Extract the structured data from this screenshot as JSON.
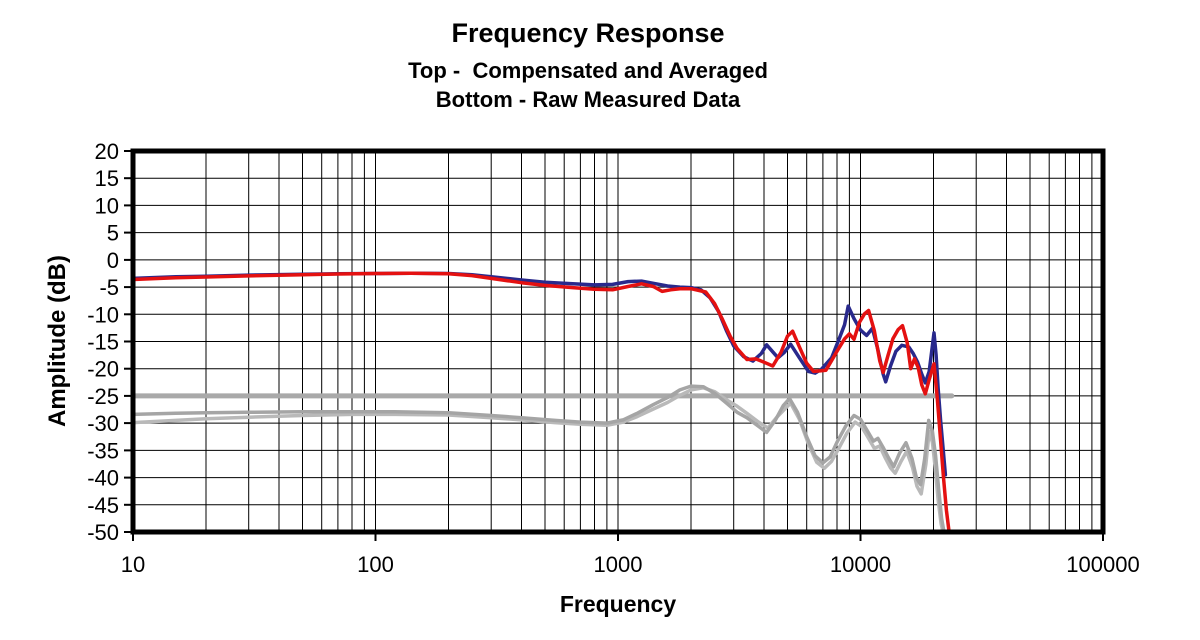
{
  "chart_data": {
    "type": "line",
    "title": "Frequency Response",
    "subtitle_top": "Top -  Compensated and Averaged",
    "subtitle_bottom": "Bottom - Raw Measured Data",
    "xlabel": "Frequency",
    "ylabel": "Amplitude (dB)",
    "x_scale": "log",
    "xlim": [
      10,
      100000
    ],
    "ylim": [
      -50,
      20
    ],
    "x_ticks": [
      10,
      100,
      1000,
      10000,
      100000
    ],
    "y_ticks": [
      20,
      15,
      10,
      5,
      0,
      -5,
      -10,
      -15,
      -20,
      -25,
      -30,
      -35,
      -40,
      -45,
      -50
    ],
    "grid": true,
    "legend": "none",
    "grid_color": "#000000",
    "border_color": "#000000",
    "series": [
      {
        "key": "reference-line",
        "label": "-25 dB reference line",
        "color": "#a9a9a9",
        "width": 5,
        "points": [
          [
            10,
            -25
          ],
          [
            23800,
            -25
          ]
        ]
      },
      {
        "key": "raw-measured-2",
        "label": "Raw Measured Data (trace 2)",
        "color": "#b9b9b9",
        "width": 3.5,
        "points": [
          [
            10,
            -29.9
          ],
          [
            15,
            -29.5
          ],
          [
            20,
            -29.2
          ],
          [
            30,
            -28.9
          ],
          [
            50,
            -28.6
          ],
          [
            80,
            -28.4
          ],
          [
            120,
            -28.4
          ],
          [
            200,
            -28.5
          ],
          [
            300,
            -29.0
          ],
          [
            400,
            -29.4
          ],
          [
            550,
            -29.9
          ],
          [
            700,
            -30.2
          ],
          [
            900,
            -30.4
          ],
          [
            1050,
            -29.8
          ],
          [
            1200,
            -28.8
          ],
          [
            1400,
            -27.4
          ],
          [
            1600,
            -26.2
          ],
          [
            1800,
            -24.9
          ],
          [
            2000,
            -23.9
          ],
          [
            2250,
            -23.5
          ],
          [
            2500,
            -24.2
          ],
          [
            2800,
            -25.7
          ],
          [
            3100,
            -26.9
          ],
          [
            3400,
            -28.2
          ],
          [
            3800,
            -29.8
          ],
          [
            4150,
            -30.9
          ],
          [
            4500,
            -29.0
          ],
          [
            4850,
            -27.5
          ],
          [
            5150,
            -26.3
          ],
          [
            5600,
            -29.3
          ],
          [
            6100,
            -33.8
          ],
          [
            6600,
            -37.2
          ],
          [
            7100,
            -38.3
          ],
          [
            7600,
            -37.0
          ],
          [
            8100,
            -34.8
          ],
          [
            8800,
            -31.8
          ],
          [
            9500,
            -29.8
          ],
          [
            10100,
            -30.6
          ],
          [
            10800,
            -32.8
          ],
          [
            11400,
            -34.6
          ],
          [
            12000,
            -34.2
          ],
          [
            12600,
            -36.2
          ],
          [
            13300,
            -38.2
          ],
          [
            13900,
            -39.2
          ],
          [
            14700,
            -37.0
          ],
          [
            15500,
            -35.2
          ],
          [
            16400,
            -38.2
          ],
          [
            17100,
            -41.6
          ],
          [
            17800,
            -43.0
          ],
          [
            18600,
            -37.5
          ],
          [
            19200,
            -31.5
          ],
          [
            19800,
            -33.5
          ],
          [
            20300,
            -38.0
          ],
          [
            20900,
            -44.0
          ],
          [
            21500,
            -48.5
          ],
          [
            21900,
            -50.0
          ]
        ]
      },
      {
        "key": "raw-measured-1",
        "label": "Raw Measured Data (trace 1)",
        "color": "#a5a5a5",
        "width": 3.5,
        "points": [
          [
            10,
            -28.4
          ],
          [
            15,
            -28.2
          ],
          [
            20,
            -28.1
          ],
          [
            30,
            -28.0
          ],
          [
            50,
            -27.9
          ],
          [
            80,
            -27.9
          ],
          [
            120,
            -27.9
          ],
          [
            200,
            -28.1
          ],
          [
            300,
            -28.6
          ],
          [
            400,
            -29.0
          ],
          [
            550,
            -29.5
          ],
          [
            700,
            -29.8
          ],
          [
            900,
            -30.0
          ],
          [
            1050,
            -29.4
          ],
          [
            1200,
            -28.2
          ],
          [
            1400,
            -26.6
          ],
          [
            1600,
            -25.3
          ],
          [
            1800,
            -23.9
          ],
          [
            2000,
            -23.2
          ],
          [
            2250,
            -23.3
          ],
          [
            2500,
            -24.5
          ],
          [
            2800,
            -26.3
          ],
          [
            3100,
            -28.0
          ],
          [
            3400,
            -29.0
          ],
          [
            3800,
            -30.6
          ],
          [
            4100,
            -31.7
          ],
          [
            4450,
            -29.5
          ],
          [
            4800,
            -26.8
          ],
          [
            5100,
            -25.5
          ],
          [
            5500,
            -28.0
          ],
          [
            6000,
            -32.5
          ],
          [
            6500,
            -36.0
          ],
          [
            7000,
            -37.3
          ],
          [
            7500,
            -36.2
          ],
          [
            8000,
            -33.5
          ],
          [
            8700,
            -30.5
          ],
          [
            9400,
            -28.6
          ],
          [
            10000,
            -29.3
          ],
          [
            10700,
            -31.5
          ],
          [
            11300,
            -33.3
          ],
          [
            11800,
            -32.8
          ],
          [
            12400,
            -34.5
          ],
          [
            13100,
            -36.5
          ],
          [
            13700,
            -38.0
          ],
          [
            14500,
            -35.5
          ],
          [
            15400,
            -33.6
          ],
          [
            16300,
            -36.5
          ],
          [
            17000,
            -40.0
          ],
          [
            17700,
            -41.3
          ],
          [
            18400,
            -36.5
          ],
          [
            19100,
            -29.5
          ],
          [
            19800,
            -31.5
          ],
          [
            20400,
            -36.0
          ],
          [
            21000,
            -42.0
          ],
          [
            21600,
            -47.5
          ],
          [
            22100,
            -50.0
          ]
        ]
      },
      {
        "key": "compensated-averaged-blue",
        "label": "Compensated and Averaged (trace 1)",
        "color": "#29298c",
        "width": 3.5,
        "points": [
          [
            10,
            -3.4
          ],
          [
            15,
            -3.1
          ],
          [
            20,
            -3.0
          ],
          [
            30,
            -2.8
          ],
          [
            50,
            -2.65
          ],
          [
            70,
            -2.55
          ],
          [
            100,
            -2.5
          ],
          [
            140,
            -2.45
          ],
          [
            200,
            -2.5
          ],
          [
            250,
            -2.75
          ],
          [
            300,
            -3.1
          ],
          [
            400,
            -3.7
          ],
          [
            500,
            -4.1
          ],
          [
            650,
            -4.4
          ],
          [
            800,
            -4.6
          ],
          [
            950,
            -4.5
          ],
          [
            1100,
            -4.0
          ],
          [
            1250,
            -3.9
          ],
          [
            1400,
            -4.3
          ],
          [
            1600,
            -4.8
          ],
          [
            1800,
            -5.0
          ],
          [
            2000,
            -5.1
          ],
          [
            2200,
            -5.5
          ],
          [
            2400,
            -7.0
          ],
          [
            2600,
            -9.5
          ],
          [
            2800,
            -13.0
          ],
          [
            3000,
            -15.8
          ],
          [
            3300,
            -17.8
          ],
          [
            3600,
            -18.6
          ],
          [
            3900,
            -17.2
          ],
          [
            4100,
            -15.6
          ],
          [
            4570,
            -18.0
          ],
          [
            4850,
            -17.0
          ],
          [
            5150,
            -15.5
          ],
          [
            5600,
            -18.0
          ],
          [
            6100,
            -20.5
          ],
          [
            6500,
            -20.8
          ],
          [
            6900,
            -20.1
          ],
          [
            7600,
            -18.0
          ],
          [
            8200,
            -14.3
          ],
          [
            8600,
            -11.9
          ],
          [
            8900,
            -8.5
          ],
          [
            9400,
            -10.8
          ],
          [
            10000,
            -12.9
          ],
          [
            10600,
            -13.9
          ],
          [
            11200,
            -12.6
          ],
          [
            11800,
            -16.5
          ],
          [
            12400,
            -21.0
          ],
          [
            12700,
            -22.4
          ],
          [
            13300,
            -19.5
          ],
          [
            14000,
            -16.8
          ],
          [
            14800,
            -15.7
          ],
          [
            15800,
            -16.0
          ],
          [
            16500,
            -17.2
          ],
          [
            17200,
            -18.8
          ],
          [
            17900,
            -21.0
          ],
          [
            18500,
            -22.6
          ],
          [
            19200,
            -20.5
          ],
          [
            19700,
            -16.5
          ],
          [
            20100,
            -13.4
          ],
          [
            20500,
            -17.5
          ],
          [
            20900,
            -23.5
          ],
          [
            21400,
            -29.5
          ],
          [
            22000,
            -35.5
          ],
          [
            22400,
            -39.5
          ]
        ]
      },
      {
        "key": "compensated-averaged-red",
        "label": "Compensated and Averaged (trace 2)",
        "color": "#e41111",
        "width": 3.5,
        "points": [
          [
            10,
            -3.6
          ],
          [
            15,
            -3.3
          ],
          [
            20,
            -3.15
          ],
          [
            30,
            -2.95
          ],
          [
            50,
            -2.75
          ],
          [
            70,
            -2.6
          ],
          [
            100,
            -2.5
          ],
          [
            140,
            -2.45
          ],
          [
            200,
            -2.55
          ],
          [
            250,
            -2.9
          ],
          [
            300,
            -3.4
          ],
          [
            400,
            -4.2
          ],
          [
            500,
            -4.7
          ],
          [
            650,
            -5.1
          ],
          [
            800,
            -5.4
          ],
          [
            950,
            -5.5
          ],
          [
            1100,
            -4.9
          ],
          [
            1250,
            -4.4
          ],
          [
            1400,
            -4.9
          ],
          [
            1520,
            -5.8
          ],
          [
            1650,
            -5.5
          ],
          [
            1800,
            -5.3
          ],
          [
            2000,
            -5.3
          ],
          [
            2300,
            -5.9
          ],
          [
            2500,
            -8.0
          ],
          [
            2700,
            -11.0
          ],
          [
            2900,
            -14.0
          ],
          [
            3100,
            -16.3
          ],
          [
            3400,
            -18.3
          ],
          [
            3700,
            -18.2
          ],
          [
            4000,
            -18.8
          ],
          [
            4350,
            -19.5
          ],
          [
            4700,
            -17.0
          ],
          [
            5000,
            -14.0
          ],
          [
            5250,
            -13.1
          ],
          [
            5600,
            -16.0
          ],
          [
            6000,
            -19.0
          ],
          [
            6400,
            -20.5
          ],
          [
            6800,
            -20.4
          ],
          [
            7200,
            -20.3
          ],
          [
            7600,
            -18.5
          ],
          [
            8000,
            -16.8
          ],
          [
            8600,
            -14.5
          ],
          [
            9000,
            -13.6
          ],
          [
            9400,
            -14.6
          ],
          [
            9900,
            -11.5
          ],
          [
            10400,
            -9.9
          ],
          [
            10800,
            -9.3
          ],
          [
            11400,
            -13.0
          ],
          [
            12000,
            -18.5
          ],
          [
            12400,
            -20.7
          ],
          [
            13000,
            -17.5
          ],
          [
            13600,
            -14.5
          ],
          [
            14300,
            -12.8
          ],
          [
            14900,
            -12.1
          ],
          [
            15600,
            -15.3
          ],
          [
            16100,
            -20.0
          ],
          [
            16700,
            -18.2
          ],
          [
            17300,
            -19.8
          ],
          [
            17900,
            -23.0
          ],
          [
            18500,
            -24.6
          ],
          [
            19200,
            -22.0
          ],
          [
            20100,
            -19.1
          ],
          [
            20700,
            -25.0
          ],
          [
            21300,
            -32.0
          ],
          [
            22000,
            -40.0
          ],
          [
            22600,
            -46.0
          ],
          [
            23200,
            -50.0
          ]
        ]
      }
    ]
  }
}
